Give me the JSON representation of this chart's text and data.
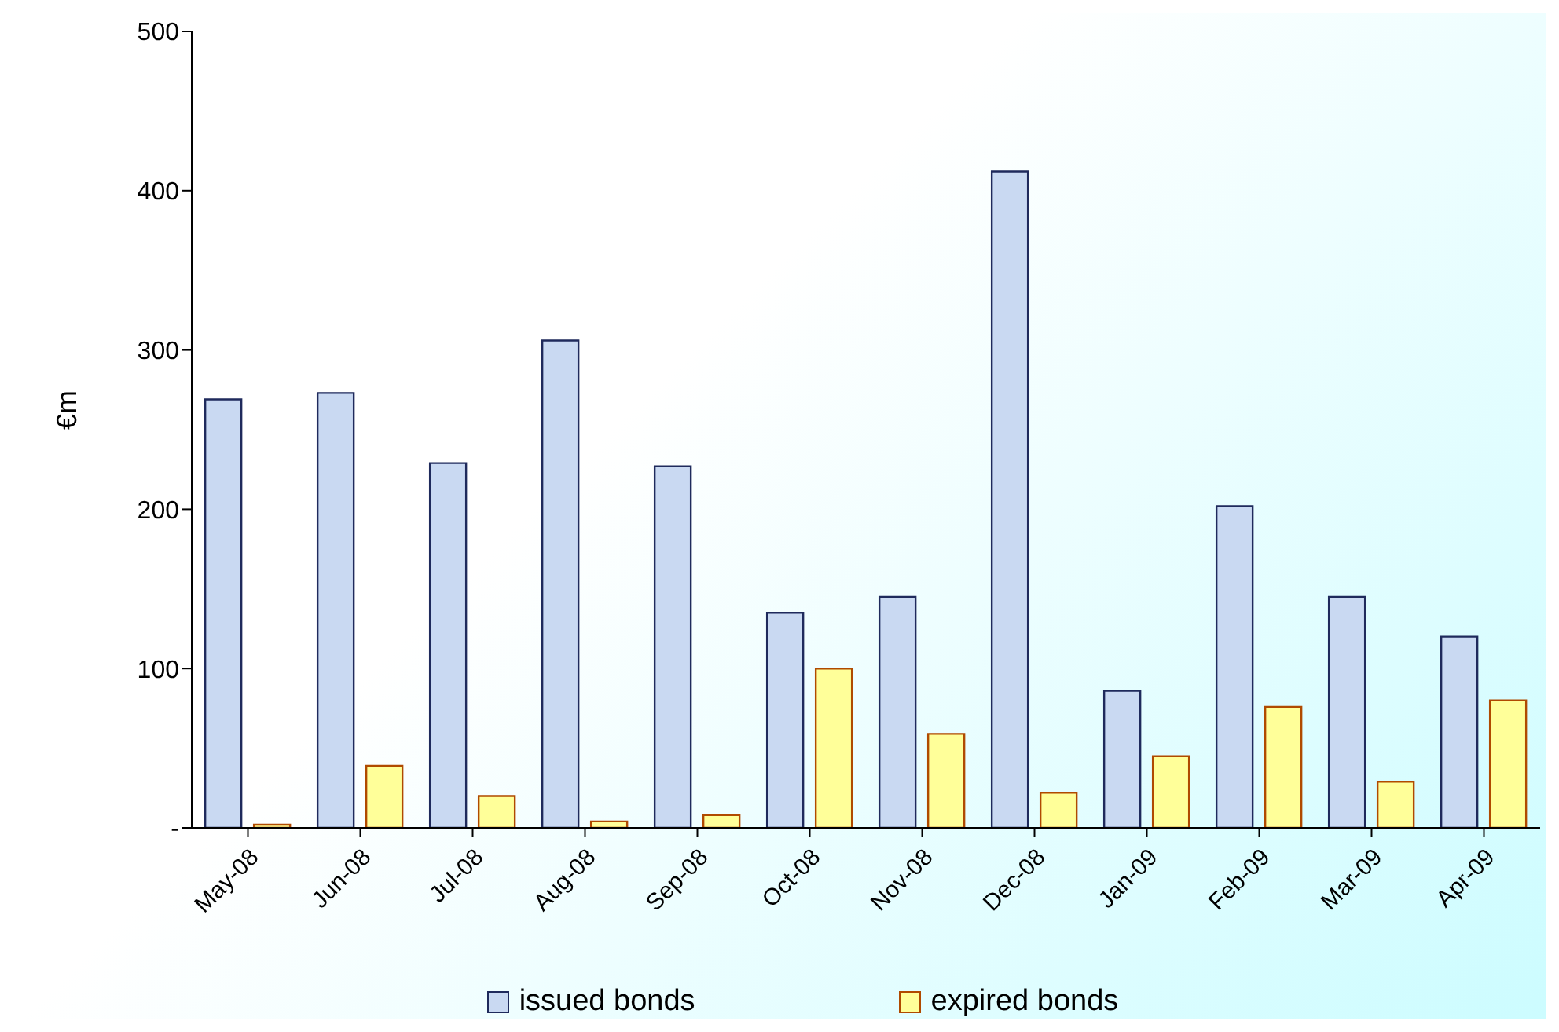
{
  "chart_data": {
    "type": "bar",
    "ylabel": "€m",
    "categories": [
      "May-08",
      "Jun-08",
      "Jul-08",
      "Aug-08",
      "Sep-08",
      "Oct-08",
      "Nov-08",
      "Dec-08",
      "Jan-09",
      "Feb-09",
      "Mar-09",
      "Apr-09"
    ],
    "series": [
      {
        "name": "issued bonds",
        "color": "#c9d9f2",
        "values": [
          269,
          273,
          229,
          306,
          227,
          135,
          145,
          412,
          86,
          202,
          145,
          120
        ]
      },
      {
        "name": "expired bonds",
        "color": "#ffff99",
        "values": [
          2,
          39,
          20,
          4,
          8,
          100,
          59,
          22,
          45,
          76,
          29,
          80
        ]
      }
    ],
    "ylim": [
      0,
      500
    ],
    "yticks": [
      {
        "value": 0,
        "label": "-"
      },
      100,
      200,
      300,
      400,
      500
    ],
    "legend": "bottom"
  }
}
